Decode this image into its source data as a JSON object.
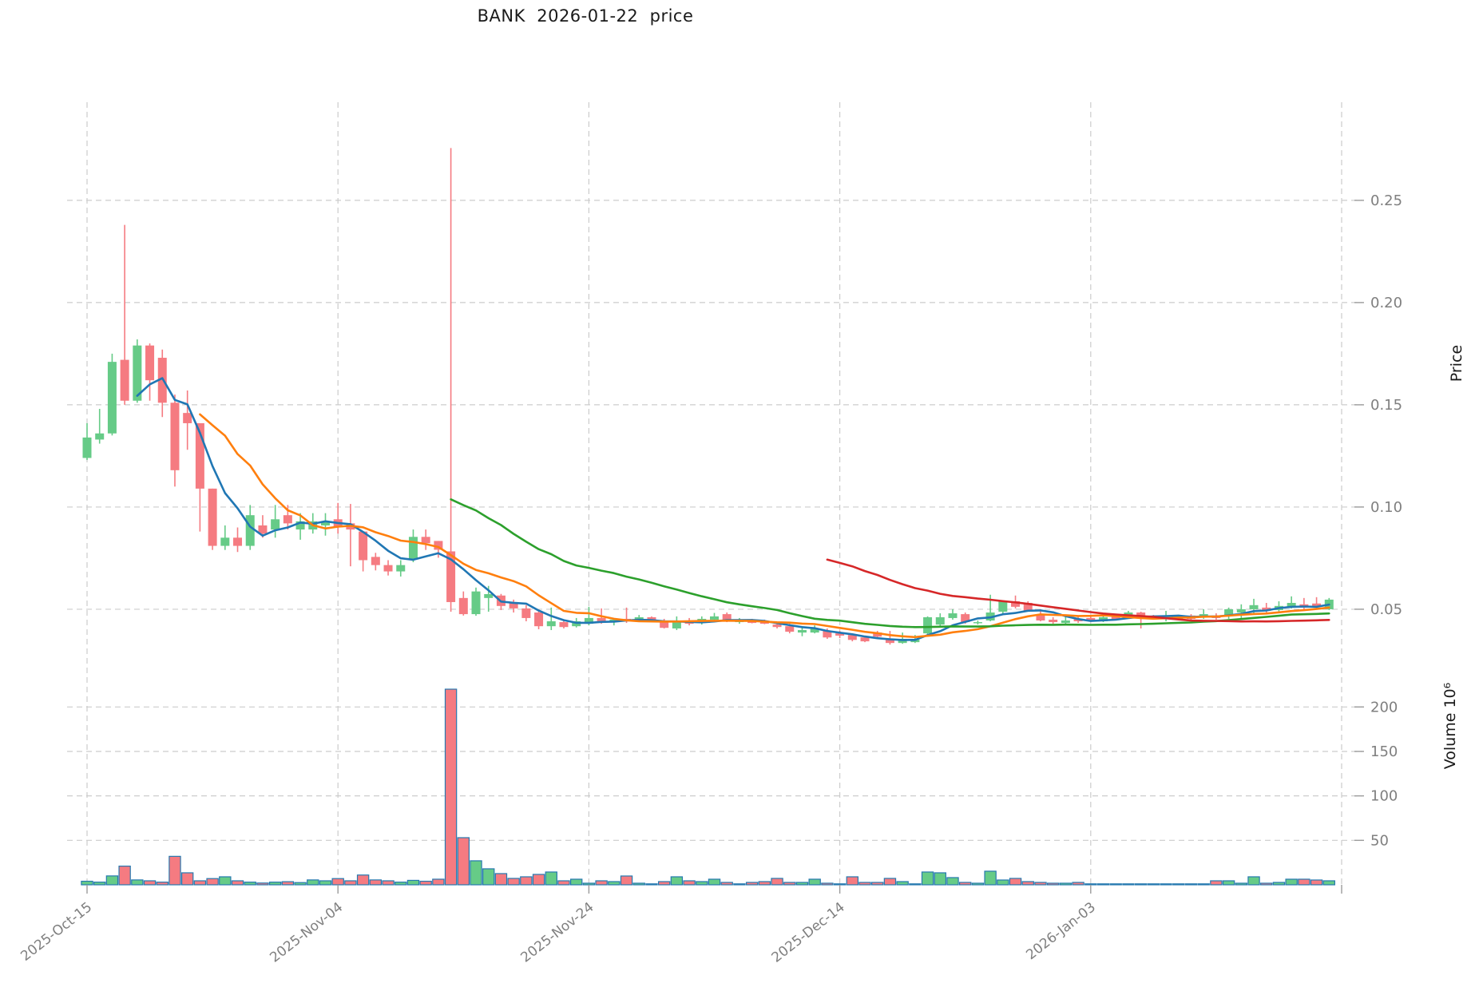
{
  "title": "BANK  2026-01-22  price",
  "chart_data": {
    "type": "candlestick+volume",
    "title": "BANK  2026-01-22  price",
    "start_date": "2025-10-15",
    "end_date": "2026-01-22",
    "frequency": "daily",
    "x_axis": {
      "tick_days": [
        0,
        20,
        40,
        60,
        80,
        100
      ],
      "tick_labels": [
        "2025-Oct-15",
        "2025-Nov-04",
        "2025-Nov-24",
        "2025-Dec-14",
        "2026-Jan-03",
        ""
      ]
    },
    "price_axis": {
      "label": "Price",
      "side": "right",
      "ticks": [
        0.05,
        0.1,
        0.15,
        0.2,
        0.25
      ],
      "tick_labels": [
        "0.05",
        "0.10",
        "0.15",
        "0.20",
        "0.25"
      ],
      "ylim": [
        0.0238,
        0.298
      ]
    },
    "volume_axis": {
      "label": "Volume  10⁶",
      "side": "right",
      "ticks": [
        50,
        100,
        150,
        200
      ],
      "tick_labels": [
        "50",
        "100",
        "150",
        "200"
      ],
      "ylim": [
        0,
        231.7
      ],
      "unit": "millions"
    },
    "grid": true,
    "ma_lines": [
      {
        "name": "sma-5",
        "window": 5,
        "color": "#2077b4"
      },
      {
        "name": "sma-10",
        "window": 10,
        "color": "#ff7f0e"
      },
      {
        "name": "sma-30",
        "window": 30,
        "color": "#2ca02c"
      },
      {
        "name": "sma-60",
        "window": 60,
        "color": "#d62728"
      }
    ],
    "colors": {
      "candle_up": "#66cb87",
      "candle_down": "#f57b81",
      "volume_bar_edge": "#2679b0",
      "grid": "#cccccc",
      "tick_text": "#7f7f7f",
      "axis_label_text": "#1a1a1a",
      "background": "#ffffff"
    },
    "candles_ohlcv": [
      [
        0.124,
        0.141,
        0.123,
        0.134,
        4.0
      ],
      [
        0.133,
        0.148,
        0.131,
        0.136,
        3.0
      ],
      [
        0.136,
        0.175,
        0.135,
        0.171,
        10.0
      ],
      [
        0.172,
        0.238,
        0.15,
        0.152,
        21.0
      ],
      [
        0.152,
        0.182,
        0.151,
        0.179,
        5.5
      ],
      [
        0.179,
        0.18,
        0.152,
        0.162,
        4.5
      ],
      [
        0.173,
        0.177,
        0.144,
        0.151,
        3.0
      ],
      [
        0.151,
        0.155,
        0.11,
        0.118,
        32.0
      ],
      [
        0.146,
        0.157,
        0.128,
        0.141,
        13.5
      ],
      [
        0.141,
        0.141,
        0.088,
        0.109,
        4.5
      ],
      [
        0.109,
        0.109,
        0.079,
        0.081,
        7.0
      ],
      [
        0.081,
        0.091,
        0.079,
        0.085,
        9.0
      ],
      [
        0.085,
        0.09,
        0.078,
        0.081,
        4.5
      ],
      [
        0.081,
        0.101,
        0.079,
        0.096,
        3.0
      ],
      [
        0.091,
        0.096,
        0.085,
        0.087,
        2.0
      ],
      [
        0.089,
        0.101,
        0.085,
        0.094,
        3.0
      ],
      [
        0.096,
        0.101,
        0.089,
        0.092,
        3.5
      ],
      [
        0.089,
        0.097,
        0.084,
        0.093,
        2.5
      ],
      [
        0.089,
        0.097,
        0.087,
        0.093,
        5.5
      ],
      [
        0.091,
        0.097,
        0.086,
        0.093,
        4.5
      ],
      [
        0.094,
        0.102,
        0.087,
        0.09,
        7.0
      ],
      [
        0.092,
        0.1015,
        0.071,
        0.089,
        4.5
      ],
      [
        0.088,
        0.088,
        0.0685,
        0.074,
        11.0
      ],
      [
        0.0756,
        0.0776,
        0.069,
        0.0716,
        5.5
      ],
      [
        0.0716,
        0.074,
        0.0665,
        0.0685,
        4.5
      ],
      [
        0.0685,
        0.074,
        0.066,
        0.0716,
        3.0
      ],
      [
        0.0744,
        0.089,
        0.073,
        0.0854,
        5.0
      ],
      [
        0.0854,
        0.089,
        0.079,
        0.0823,
        4.0
      ],
      [
        0.0834,
        0.0834,
        0.0752,
        0.0791,
        6.3
      ],
      [
        0.0783,
        0.2756,
        0.0488,
        0.0535,
        220.0
      ],
      [
        0.0555,
        0.0587,
        0.0469,
        0.0476,
        53.0
      ],
      [
        0.0476,
        0.0606,
        0.0468,
        0.0587,
        27.0
      ],
      [
        0.0555,
        0.0614,
        0.0488,
        0.0574,
        18.0
      ],
      [
        0.0567,
        0.0575,
        0.0496,
        0.0516,
        12.6
      ],
      [
        0.0535,
        0.0547,
        0.0484,
        0.0504,
        7.2
      ],
      [
        0.0504,
        0.052,
        0.0441,
        0.0457,
        9.0
      ],
      [
        0.0484,
        0.0496,
        0.0402,
        0.0417,
        11.7
      ],
      [
        0.0417,
        0.0508,
        0.0398,
        0.0441,
        14.4
      ],
      [
        0.0437,
        0.0449,
        0.0406,
        0.0413,
        4.5
      ],
      [
        0.0417,
        0.0457,
        0.0411,
        0.0441,
        6.3
      ],
      [
        0.0429,
        0.0512,
        0.0421,
        0.0457,
        1.8
      ],
      [
        0.0457,
        0.0504,
        0.0429,
        0.0437,
        4.5
      ],
      [
        0.0437,
        0.0457,
        0.0421,
        0.0449,
        3.6
      ],
      [
        0.0453,
        0.0508,
        0.0433,
        0.0441,
        9.9
      ],
      [
        0.0449,
        0.0472,
        0.0441,
        0.0461,
        1.8
      ],
      [
        0.0461,
        0.0465,
        0.0441,
        0.0445,
        0.9
      ],
      [
        0.0441,
        0.0453,
        0.0406,
        0.0409,
        3.6
      ],
      [
        0.0406,
        0.0465,
        0.0398,
        0.0445,
        9.0
      ],
      [
        0.0445,
        0.0457,
        0.0421,
        0.0429,
        4.5
      ],
      [
        0.0433,
        0.0465,
        0.0425,
        0.0453,
        3.6
      ],
      [
        0.0449,
        0.0482,
        0.0445,
        0.0465,
        6.3
      ],
      [
        0.0476,
        0.0484,
        0.0437,
        0.0441,
        2.7
      ],
      [
        0.0437,
        0.0457,
        0.0429,
        0.0445,
        0.9
      ],
      [
        0.0445,
        0.0453,
        0.0431,
        0.0433,
        2.7
      ],
      [
        0.0441,
        0.0449,
        0.0427,
        0.0429,
        3.6
      ],
      [
        0.0425,
        0.0437,
        0.0406,
        0.0413,
        7.2
      ],
      [
        0.0417,
        0.0429,
        0.0382,
        0.039,
        2.7
      ],
      [
        0.0386,
        0.0417,
        0.0368,
        0.0398,
        2.7
      ],
      [
        0.0386,
        0.0421,
        0.0382,
        0.0406,
        6.3
      ],
      [
        0.0394,
        0.0406,
        0.0355,
        0.0362,
        1.8
      ],
      [
        0.0382,
        0.0394,
        0.0359,
        0.0371,
        0.9
      ],
      [
        0.0374,
        0.038,
        0.0343,
        0.035,
        9.0
      ],
      [
        0.0362,
        0.037,
        0.0339,
        0.0343,
        2.7
      ],
      [
        0.0386,
        0.0394,
        0.0355,
        0.0366,
        2.7
      ],
      [
        0.0355,
        0.0394,
        0.0327,
        0.0335,
        7.2
      ],
      [
        0.0335,
        0.0386,
        0.0331,
        0.0355,
        3.6
      ],
      [
        0.0339,
        0.0374,
        0.0335,
        0.0351,
        0.9
      ],
      [
        0.0382,
        0.0465,
        0.0378,
        0.0461,
        14.4
      ],
      [
        0.0425,
        0.048,
        0.0417,
        0.0461,
        13.5
      ],
      [
        0.0457,
        0.05,
        0.0449,
        0.048,
        8.1
      ],
      [
        0.0476,
        0.0484,
        0.0429,
        0.0437,
        2.7
      ],
      [
        0.0433,
        0.0445,
        0.0425,
        0.0437,
        1.8
      ],
      [
        0.0445,
        0.0571,
        0.0441,
        0.0484,
        15.3
      ],
      [
        0.0488,
        0.0543,
        0.0476,
        0.0539,
        5.4
      ],
      [
        0.0539,
        0.0567,
        0.0504,
        0.0512,
        7.2
      ],
      [
        0.0531,
        0.0539,
        0.0488,
        0.0492,
        3.6
      ],
      [
        0.0472,
        0.05,
        0.0441,
        0.0445,
        2.7
      ],
      [
        0.0449,
        0.0461,
        0.0429,
        0.0437,
        1.8
      ],
      [
        0.0433,
        0.0465,
        0.0429,
        0.0445,
        1.8
      ],
      [
        0.0453,
        0.0469,
        0.0433,
        0.0441,
        2.7
      ],
      [
        0.0457,
        0.0465,
        0.0441,
        0.0445,
        0.9
      ],
      [
        0.0441,
        0.0469,
        0.0437,
        0.0461,
        0.9
      ],
      [
        0.0465,
        0.0476,
        0.0449,
        0.0453,
        0.9
      ],
      [
        0.0465,
        0.0492,
        0.0457,
        0.0484,
        0.7
      ],
      [
        0.0484,
        0.0488,
        0.0406,
        0.0469,
        0.9
      ],
      [
        0.0461,
        0.0472,
        0.0449,
        0.0457,
        0.7
      ],
      [
        0.0457,
        0.0492,
        0.0441,
        0.0469,
        0.7
      ],
      [
        0.0453,
        0.0469,
        0.0445,
        0.0465,
        0.7
      ],
      [
        0.0469,
        0.0476,
        0.0445,
        0.0453,
        0.7
      ],
      [
        0.0461,
        0.05,
        0.0453,
        0.0476,
        0.7
      ],
      [
        0.0469,
        0.048,
        0.0449,
        0.0457,
        4.5
      ],
      [
        0.0469,
        0.0508,
        0.0453,
        0.05,
        4.5
      ],
      [
        0.0484,
        0.0524,
        0.0449,
        0.05,
        1.8
      ],
      [
        0.05,
        0.0551,
        0.0476,
        0.052,
        9.0
      ],
      [
        0.0508,
        0.0531,
        0.0484,
        0.0492,
        1.8
      ],
      [
        0.0496,
        0.0539,
        0.0488,
        0.0516,
        2.7
      ],
      [
        0.0512,
        0.0563,
        0.0504,
        0.0531,
        6.3
      ],
      [
        0.0524,
        0.0555,
        0.05,
        0.0508,
        6.3
      ],
      [
        0.0528,
        0.0559,
        0.0504,
        0.0512,
        5.4
      ],
      [
        0.05,
        0.0555,
        0.0496,
        0.0547,
        4.5
      ]
    ]
  }
}
